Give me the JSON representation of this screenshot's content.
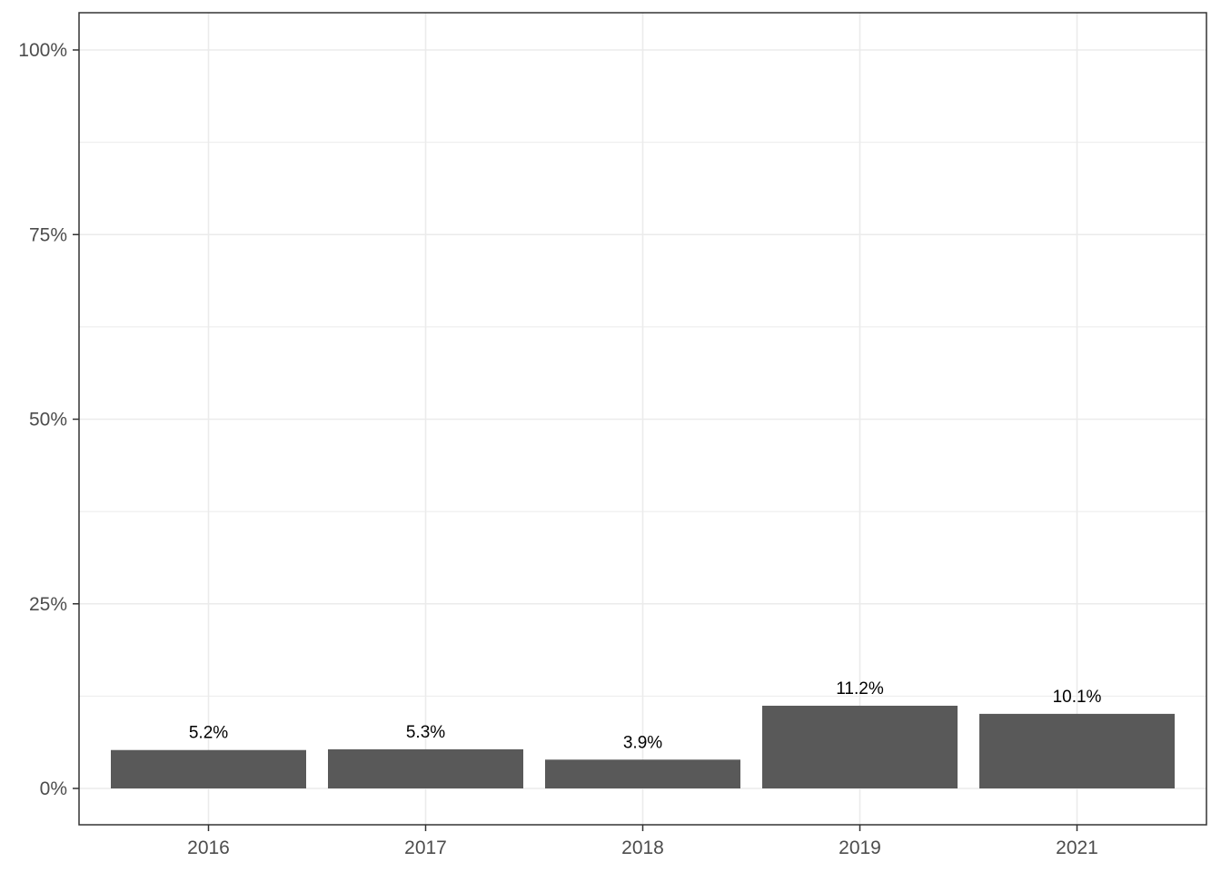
{
  "chart_data": {
    "type": "bar",
    "title": "",
    "xlabel": "",
    "ylabel": "",
    "categories": [
      "2016",
      "2017",
      "2018",
      "2019",
      "2021"
    ],
    "values": [
      5.2,
      5.3,
      3.9,
      11.2,
      10.1
    ],
    "labels": [
      "5.2%",
      "5.3%",
      "3.9%",
      "11.2%",
      "10.1%"
    ],
    "ylim": [
      0,
      100
    ],
    "yticks": [
      0,
      25,
      50,
      75,
      100
    ],
    "ytick_labels": [
      "0%",
      "25%",
      "50%",
      "75%",
      "100%"
    ],
    "grid": true,
    "legend": "none",
    "colors": {
      "bar": "#595959",
      "grid": "#ebebeb",
      "panel_border": "#333333",
      "background": "#ffffff"
    }
  }
}
